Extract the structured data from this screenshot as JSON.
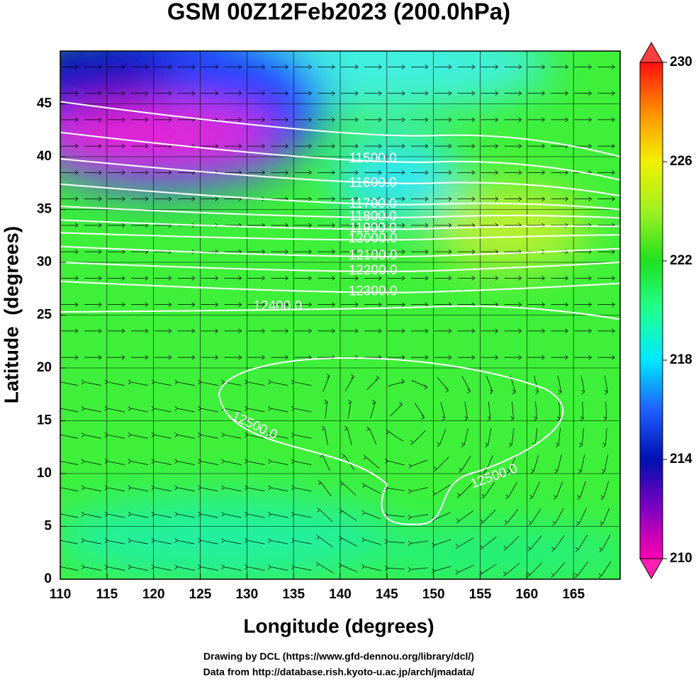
{
  "map": {
    "title": "GSM 00Z12Feb2023 (200.0hPa)",
    "xlabel": "Longitude (degrees)",
    "ylabel": "Latitude  (degrees)",
    "xlim": [
      110,
      170
    ],
    "ylim": [
      0,
      50
    ],
    "xticks": [
      110,
      115,
      120,
      125,
      130,
      135,
      140,
      145,
      150,
      155,
      160,
      165
    ],
    "yticks": [
      0,
      5,
      10,
      15,
      20,
      25,
      30,
      35,
      40,
      45
    ],
    "colorbar": {
      "lim": [
        210,
        230
      ],
      "ticks": [
        210,
        214,
        218,
        222,
        226,
        230
      ]
    },
    "contour_labels": [
      "11500.0",
      "11600.0",
      "11700.0",
      "11800.0",
      "11900.0",
      "12000.0",
      "12100.0",
      "12200.0",
      "12300.0",
      "12400.0",
      "12500.0",
      "12500.0"
    ],
    "footer": [
      "Drawing by DCL (https://www.gfd-dennou.org/library/dcl/)",
      "Data from http://database.rish.kyoto-u.ac.jp/arch/jmadata/"
    ]
  }
}
